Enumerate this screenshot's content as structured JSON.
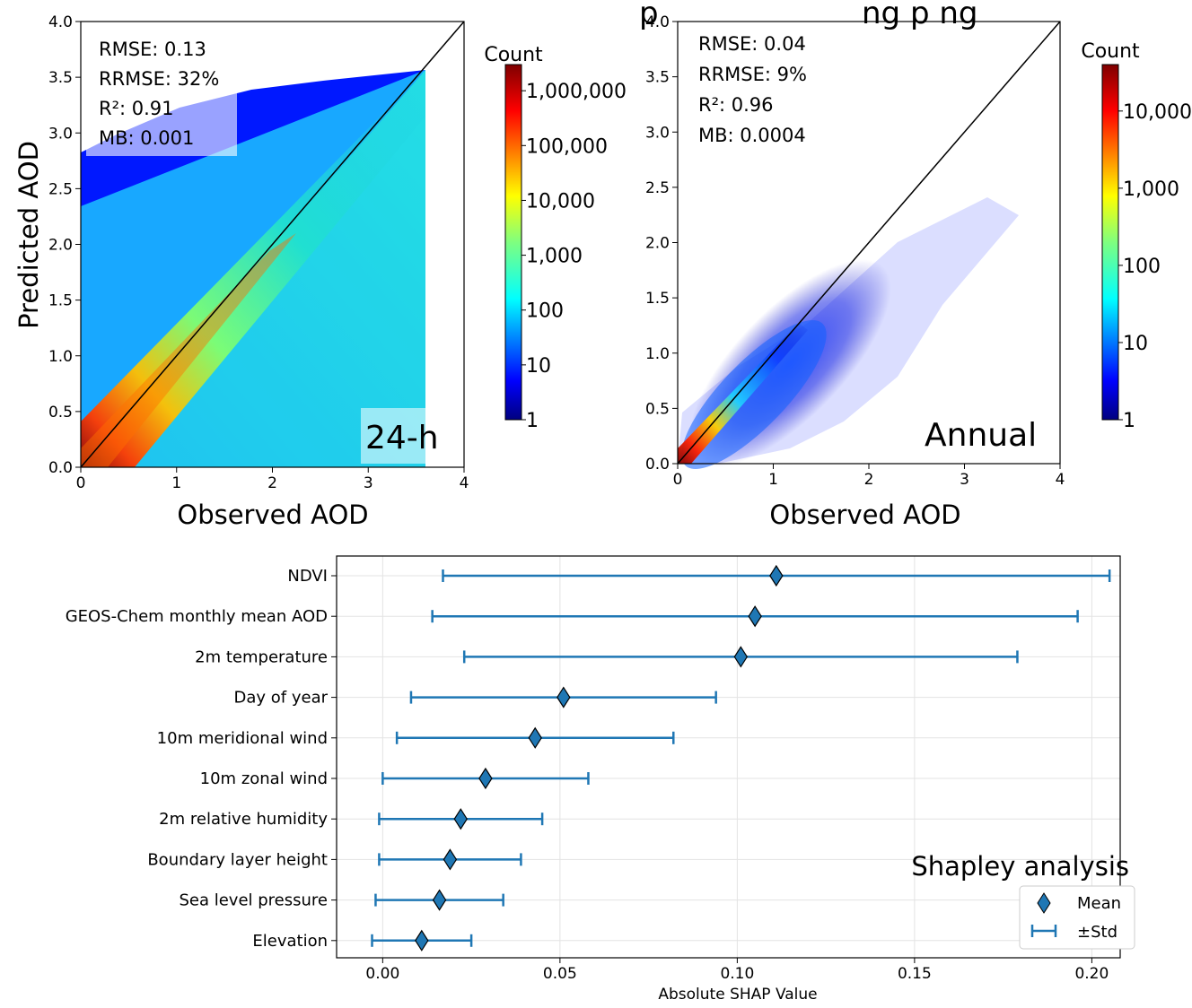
{
  "title_fragment": "p",
  "title_fragment2": "ng p ng",
  "charts": [
    {
      "type": "heatmap",
      "xlabel": "Observed AOD",
      "ylabel": "Predicted AOD",
      "xlim": [
        0,
        4
      ],
      "ylim": [
        0,
        4
      ],
      "xticks": [
        "0",
        "1",
        "2",
        "3",
        "4"
      ],
      "yticks": [
        "0.0",
        "0.5",
        "1.0",
        "1.5",
        "2.0",
        "2.5",
        "3.0",
        "3.5",
        "4.0"
      ],
      "stats": [
        "RMSE: 0.13",
        "RRMSE: 32%",
        "R²: 0.91",
        "MB: 0.001"
      ],
      "stats_keys": [
        "RMSE",
        "RRMSE",
        "R2",
        "MB"
      ],
      "stats_values": [
        0.13,
        "32%",
        0.91,
        0.001
      ],
      "label": "24-h",
      "colorbar": {
        "title": "Count",
        "scale": "log",
        "ticks": [
          "1,000,000",
          "100,000",
          "10,000",
          "1,000",
          "100",
          "10",
          "1"
        ],
        "range": [
          1,
          3000000
        ]
      }
    },
    {
      "type": "heatmap",
      "xlabel": "Observed AOD",
      "ylabel": "",
      "xlim": [
        0,
        4
      ],
      "ylim": [
        0,
        4
      ],
      "xticks": [
        "0",
        "1",
        "2",
        "3",
        "4"
      ],
      "yticks": [
        "0.0",
        "0.5",
        "1.0",
        "1.5",
        "2.0",
        "2.5",
        "3.0",
        "3.5",
        "4.0"
      ],
      "stats": [
        "RMSE: 0.04",
        "RRMSE: 9%",
        "R²: 0.96",
        "MB: 0.0004"
      ],
      "stats_keys": [
        "RMSE",
        "RRMSE",
        "R2",
        "MB"
      ],
      "stats_values": [
        0.04,
        "9%",
        0.96,
        0.0004
      ],
      "label": "Annual",
      "colorbar": {
        "title": "Count",
        "scale": "log",
        "ticks": [
          "10,000",
          "1,000",
          "100",
          "10",
          "1"
        ],
        "range": [
          1,
          40000
        ]
      }
    }
  ],
  "chart_data": {
    "type": "scatter",
    "title": "Shapley analysis",
    "xlabel": "Absolute SHAP Value",
    "xlim": [
      -0.013,
      0.208
    ],
    "xticks": [
      "0.00",
      "0.05",
      "0.10",
      "0.15",
      "0.20"
    ],
    "grid": true,
    "legend_position": "bottom-right",
    "legend": [
      "Mean",
      "±Std"
    ],
    "categories": [
      "NDVI",
      "GEOS-Chem monthly mean AOD",
      "2m temperature",
      "Day of year",
      "10m meridional wind",
      "10m zonal wind",
      "2m relative humidity",
      "Boundary layer height",
      "Sea level pressure",
      "Elevation"
    ],
    "series": [
      {
        "name": "Mean",
        "values": [
          0.111,
          0.105,
          0.101,
          0.051,
          0.043,
          0.029,
          0.022,
          0.019,
          0.016,
          0.011
        ]
      },
      {
        "name": "±Std",
        "values": [
          0.094,
          0.091,
          0.078,
          0.043,
          0.039,
          0.029,
          0.023,
          0.02,
          0.018,
          0.014
        ]
      }
    ],
    "color": "#1f77b4"
  }
}
